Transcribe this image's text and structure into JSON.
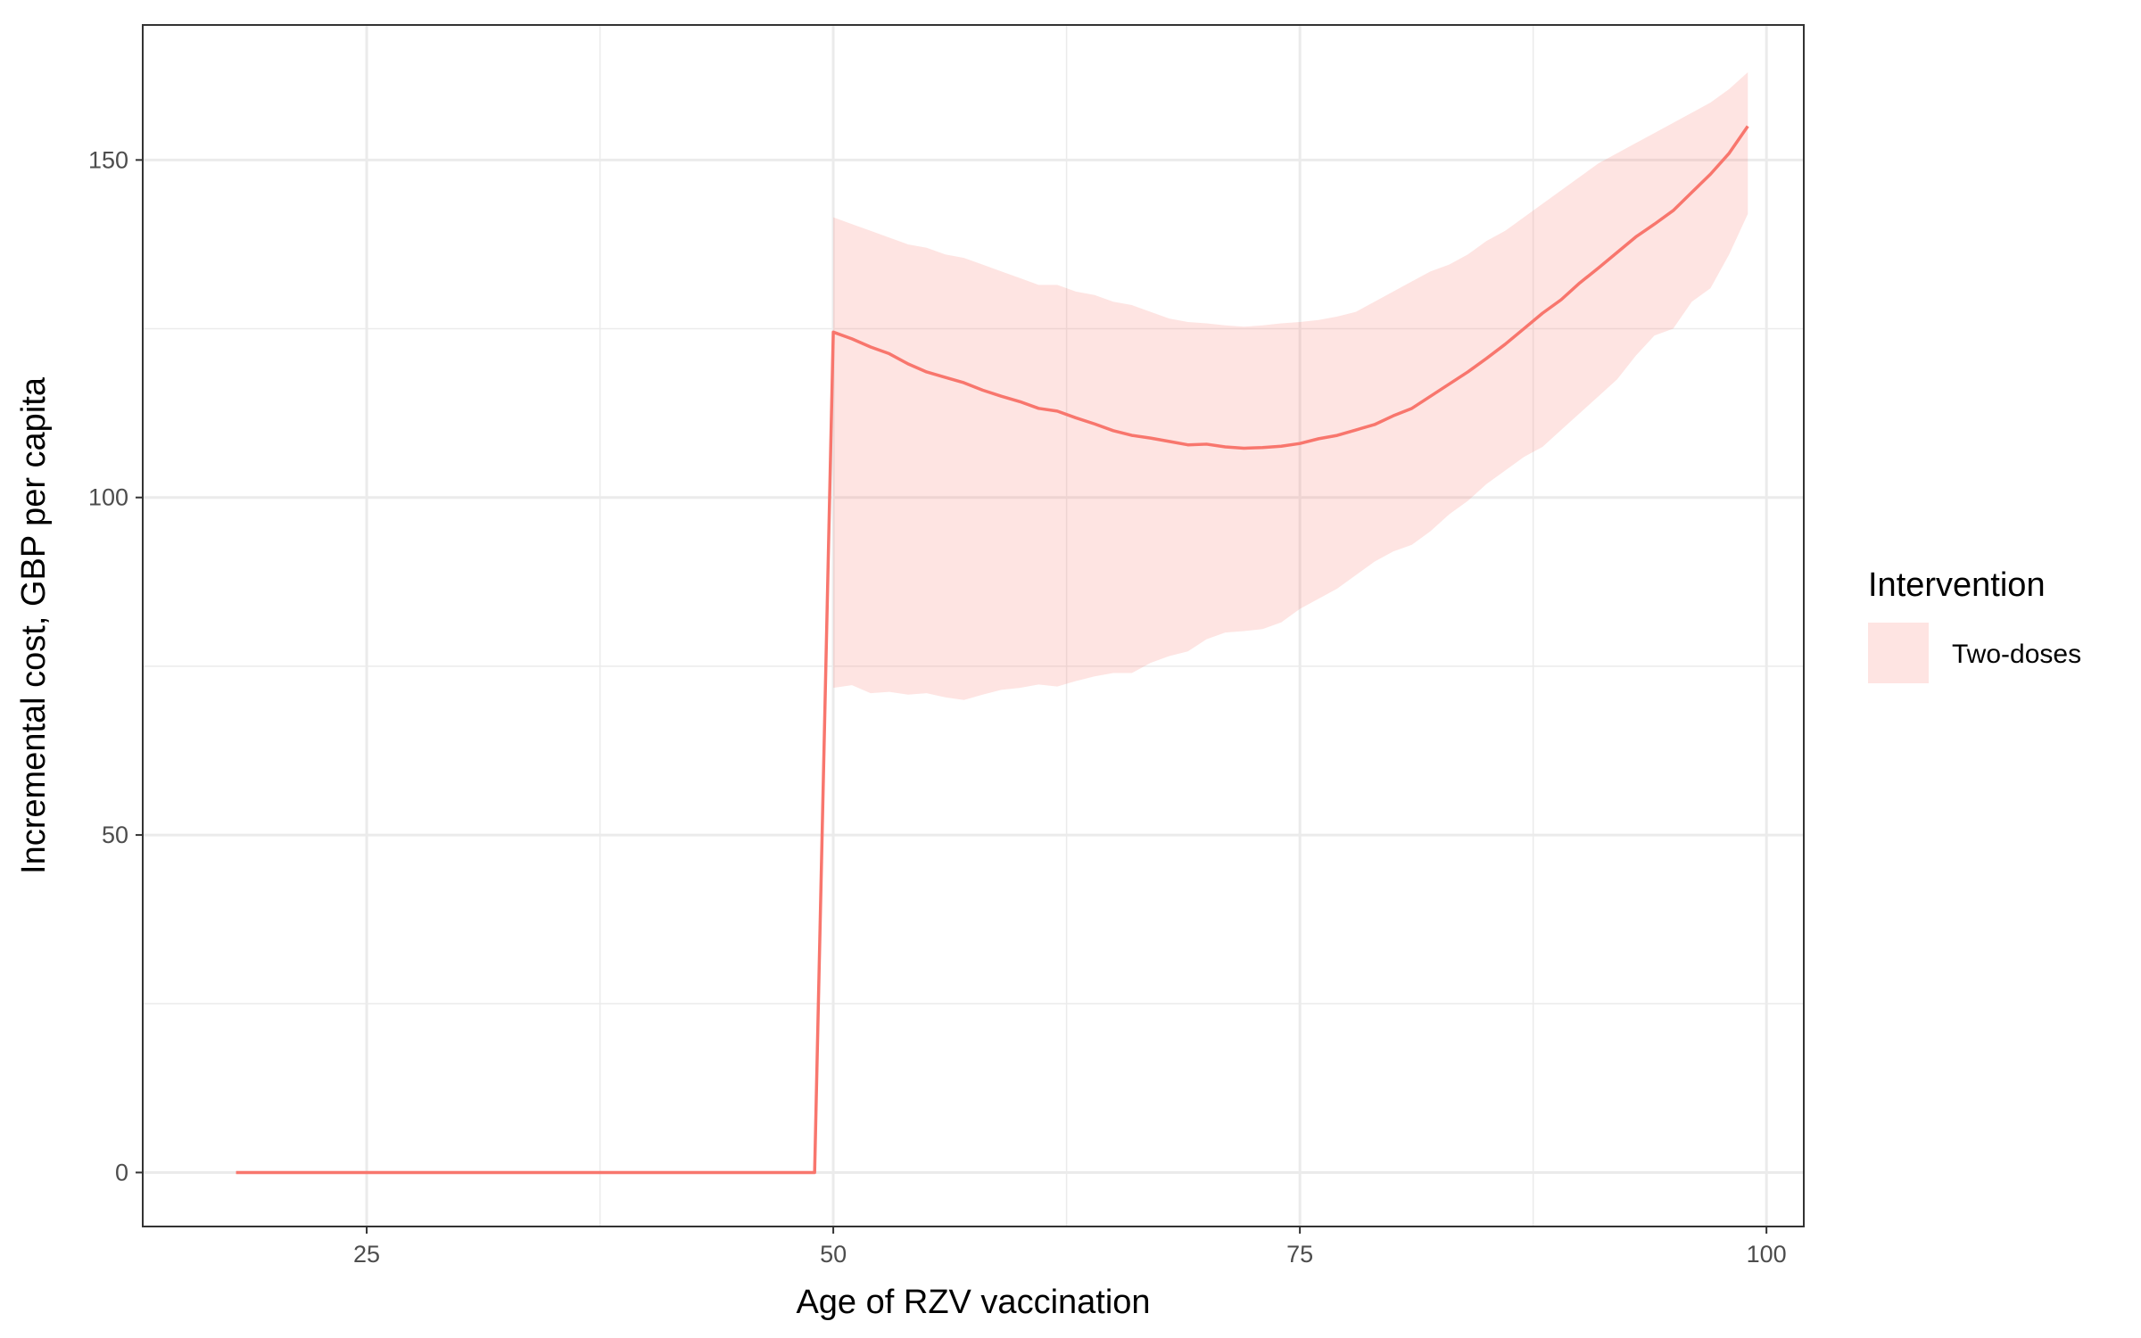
{
  "chart_data": {
    "type": "line",
    "title": "",
    "xlabel": "Age of RZV vaccination",
    "ylabel": "Incremental cost, GBP per capita",
    "xlim": [
      13,
      102
    ],
    "ylim": [
      -8,
      170
    ],
    "x_ticks": [
      25,
      50,
      75,
      100
    ],
    "y_ticks": [
      0,
      50,
      100,
      150
    ],
    "grid": true,
    "legend": {
      "title": "Intervention",
      "placement": "right",
      "entries": [
        "Two-doses"
      ]
    },
    "colors": {
      "line": "#F8766D",
      "ribbon": "#F8766D",
      "grid": "#ebebeb",
      "panel_border": "#333333"
    },
    "series": [
      {
        "name": "Two-doses",
        "x": [
          18,
          49,
          50,
          51,
          52,
          53,
          54,
          55,
          56,
          57,
          58,
          59,
          60,
          61,
          62,
          63,
          64,
          65,
          66,
          67,
          68,
          69,
          70,
          71,
          72,
          73,
          74,
          75,
          76,
          77,
          78,
          79,
          80,
          81,
          82,
          83,
          84,
          85,
          86,
          87,
          88,
          89,
          90,
          91,
          92,
          93,
          94,
          95,
          96,
          97,
          98,
          99
        ],
        "values": [
          0,
          0,
          124.5,
          123.5,
          122.3,
          121.3,
          119.8,
          118.6,
          117.8,
          117.0,
          115.9,
          115.0,
          114.2,
          113.2,
          112.8,
          111.8,
          110.9,
          109.9,
          109.2,
          108.8,
          108.3,
          107.8,
          107.9,
          107.5,
          107.3,
          107.4,
          107.6,
          108.0,
          108.7,
          109.2,
          110.0,
          110.8,
          112.1,
          113.2,
          115.0,
          116.8,
          118.6,
          120.6,
          122.7,
          125.0,
          127.3,
          129.3,
          131.8,
          134.0,
          136.3,
          138.6,
          140.5,
          142.5,
          145.2,
          147.9,
          151.0,
          155.0
        ],
        "lower": [
          null,
          null,
          71.8,
          72.2,
          71.0,
          71.2,
          70.8,
          71.0,
          70.4,
          70.0,
          70.8,
          71.5,
          71.8,
          72.3,
          72.0,
          72.8,
          73.5,
          74.0,
          74.0,
          75.5,
          76.5,
          77.2,
          79.0,
          80.0,
          80.2,
          80.5,
          81.5,
          83.5,
          85.0,
          86.5,
          88.5,
          90.5,
          92.0,
          93.0,
          95.0,
          97.5,
          99.5,
          102.0,
          104.0,
          106.0,
          107.5,
          110.0,
          112.5,
          115.0,
          117.5,
          121.0,
          124.0,
          125.0,
          129.0,
          131.0,
          136.0,
          142.0
        ],
        "upper": [
          null,
          null,
          141.5,
          140.5,
          139.5,
          138.5,
          137.5,
          137.0,
          136.0,
          135.5,
          134.5,
          133.5,
          132.5,
          131.5,
          131.5,
          130.5,
          130.0,
          129.0,
          128.5,
          127.5,
          126.5,
          126.0,
          125.8,
          125.5,
          125.3,
          125.5,
          125.8,
          126.0,
          126.3,
          126.8,
          127.5,
          129.0,
          130.5,
          132.0,
          133.5,
          134.5,
          136.0,
          138.0,
          139.5,
          141.5,
          143.5,
          145.5,
          147.5,
          149.5,
          151.0,
          152.5,
          154.0,
          155.5,
          157.0,
          158.5,
          160.5,
          163.0
        ]
      }
    ]
  }
}
